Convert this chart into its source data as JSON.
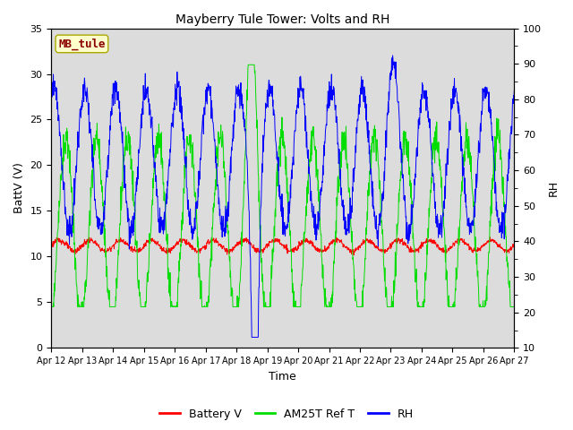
{
  "title": "Mayberry Tule Tower: Volts and RH",
  "xlabel": "Time",
  "ylabel_left": "BattV (V)",
  "ylabel_right": "RH",
  "ylim_left": [
    0,
    35
  ],
  "ylim_right": [
    10,
    100
  ],
  "label_text": "MB_tule",
  "label_bg": "#FFFFCC",
  "label_fg": "#8B0000",
  "bg_color": "#DCDCDC",
  "legend_entries": [
    "Battery V",
    "AM25T Ref T",
    "RH"
  ],
  "line_colors": [
    "#FF0000",
    "#00DD00",
    "#0000FF"
  ],
  "x_tick_labels": [
    "Apr 12",
    "Apr 13",
    "Apr 14",
    "Apr 15",
    "Apr 16",
    "Apr 17",
    "Apr 18",
    "Apr 19",
    "Apr 20",
    "Apr 21",
    "Apr 22",
    "Apr 23",
    "Apr 24",
    "Apr 25",
    "Apr 26",
    "Apr 27"
  ],
  "figsize": [
    6.4,
    4.8
  ],
  "dpi": 100
}
